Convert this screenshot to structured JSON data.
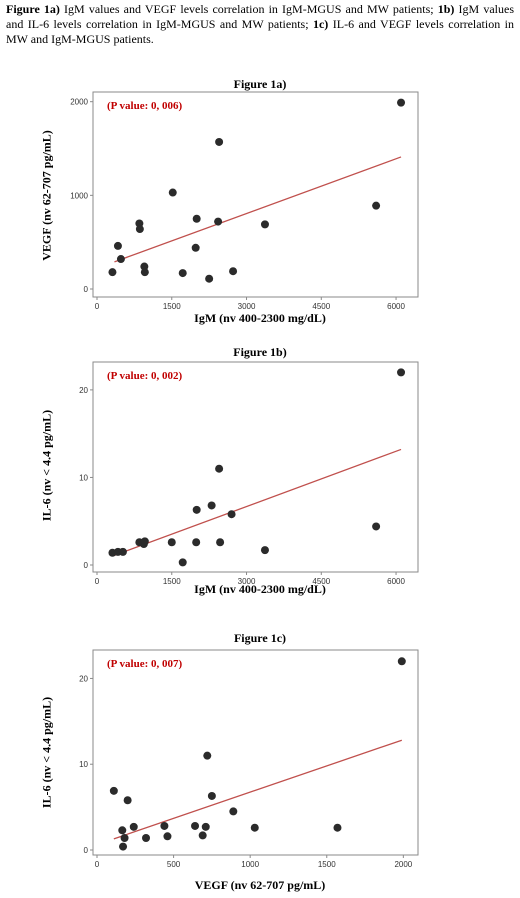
{
  "caption": {
    "part1_bold": "Figure 1a)",
    "part1_text": " IgM values and VEGF levels correlation in IgM-MGUS and MW patients; ",
    "part2_bold": "1b)",
    "part2_text": " IgM values and IL-6 levels correlation in IgM-MGUS and MW patients; ",
    "part3_bold": "1c)",
    "part3_text": " IL-6 and VEGF levels correlation in MW and IgM-MGUS patients."
  },
  "colors": {
    "point": "#2b2b2b",
    "trend": "#c0504d",
    "pvalue": "#c00000",
    "frame": "#8a8a8a"
  },
  "chart_data": [
    {
      "type": "scatter",
      "title": "Figure 1a)",
      "xlabel": "IgM (nv 400-2300 mg/dL)",
      "ylabel": "VEGF (nv 62-707 pg/mL)",
      "annotation": "(P value: 0, 006)",
      "xlim": [
        0,
        6300
      ],
      "ylim": [
        0,
        2050
      ],
      "xticks": [
        0,
        1500,
        3000,
        4500,
        6000
      ],
      "yticks": [
        0,
        1000,
        2000
      ],
      "points": [
        [
          310,
          180
        ],
        [
          420,
          460
        ],
        [
          480,
          320
        ],
        [
          850,
          700
        ],
        [
          860,
          640
        ],
        [
          950,
          240
        ],
        [
          960,
          180
        ],
        [
          1520,
          1030
        ],
        [
          1720,
          170
        ],
        [
          2000,
          750
        ],
        [
          1980,
          440
        ],
        [
          2250,
          110
        ],
        [
          2430,
          720
        ],
        [
          2450,
          1570
        ],
        [
          2730,
          190
        ],
        [
          3370,
          690
        ],
        [
          5600,
          890
        ],
        [
          6100,
          1990
        ]
      ],
      "trendline": [
        [
          350,
          290
        ],
        [
          6100,
          1410
        ]
      ]
    },
    {
      "type": "scatter",
      "title": "Figure 1b)",
      "xlabel": "IgM (nv 400-2300 mg/dL)",
      "ylabel": "IL-6 (nv < 4.4 pg/mL)",
      "annotation": "(P value: 0, 002)",
      "xlim": [
        0,
        6300
      ],
      "ylim": [
        0,
        22.5
      ],
      "xticks": [
        0,
        1500,
        3000,
        4500,
        6000
      ],
      "yticks": [
        0,
        10,
        20
      ],
      "points": [
        [
          310,
          1.4
        ],
        [
          420,
          1.5
        ],
        [
          520,
          1.5
        ],
        [
          850,
          2.6
        ],
        [
          940,
          2.4
        ],
        [
          960,
          2.7
        ],
        [
          1500,
          2.6
        ],
        [
          1720,
          0.3
        ],
        [
          1990,
          2.6
        ],
        [
          2000,
          6.3
        ],
        [
          2300,
          6.8
        ],
        [
          2450,
          11.0
        ],
        [
          2470,
          2.6
        ],
        [
          2700,
          5.8
        ],
        [
          3370,
          1.7
        ],
        [
          5600,
          4.4
        ],
        [
          6100,
          22.0
        ]
      ],
      "trendline": [
        [
          350,
          1.1
        ],
        [
          6100,
          13.2
        ]
      ]
    },
    {
      "type": "scatter",
      "title": "Figure 1c)",
      "xlabel": "VEGF (nv 62-707 pg/mL)",
      "ylabel": "IL-6 (nv < 4.4 pg/mL)",
      "annotation": "(P value: 0, 007)",
      "xlim": [
        0,
        2050
      ],
      "ylim": [
        0,
        22.5
      ],
      "xticks": [
        0,
        500,
        1000,
        1500,
        2000
      ],
      "yticks": [
        0,
        10,
        20
      ],
      "points": [
        [
          110,
          6.9
        ],
        [
          165,
          2.3
        ],
        [
          170,
          0.4
        ],
        [
          180,
          1.4
        ],
        [
          200,
          5.8
        ],
        [
          240,
          2.7
        ],
        [
          320,
          1.4
        ],
        [
          440,
          2.8
        ],
        [
          460,
          1.6
        ],
        [
          640,
          2.8
        ],
        [
          690,
          1.7
        ],
        [
          710,
          2.7
        ],
        [
          720,
          11.0
        ],
        [
          750,
          6.3
        ],
        [
          890,
          4.5
        ],
        [
          1030,
          2.6
        ],
        [
          1570,
          2.6
        ],
        [
          1990,
          22.0
        ]
      ],
      "trendline": [
        [
          110,
          1.3
        ],
        [
          1990,
          12.8
        ]
      ]
    }
  ]
}
